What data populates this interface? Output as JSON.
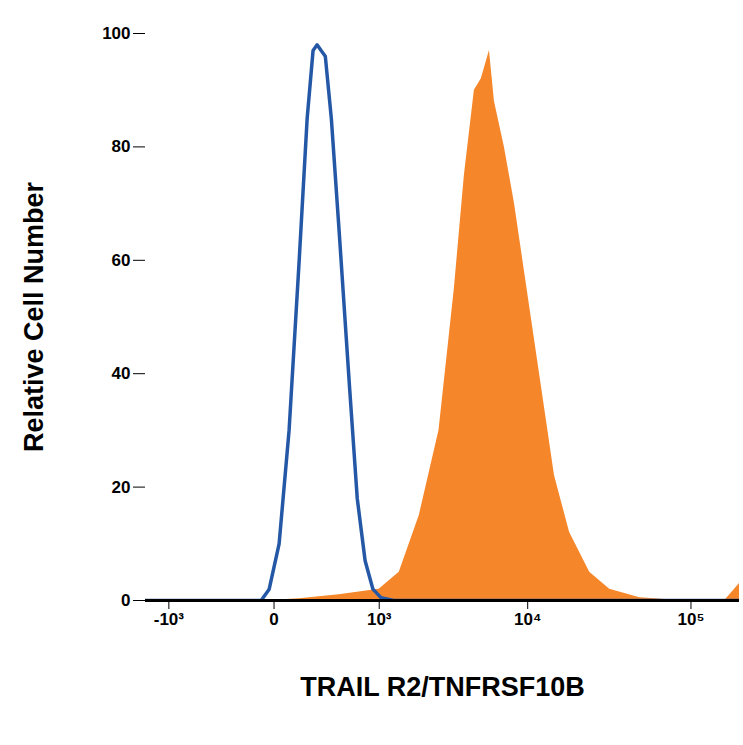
{
  "chart_data": {
    "type": "line",
    "xlabel": "TRAIL R2/TNFRSF10B",
    "ylabel": "Relative Cell Number",
    "log": "x",
    "xlim": [
      -1500,
      197000
    ],
    "xticks": [
      {
        "value": -1000,
        "label": "-10³"
      },
      0,
      {
        "value": 1000,
        "label": "10³"
      },
      {
        "value": 10000,
        "label": "10⁴"
      },
      {
        "value": 100000,
        "label": "10⁵"
      }
    ],
    "ylim": [
      0,
      100
    ],
    "yticks": [
      0,
      20,
      40,
      60,
      80,
      100
    ],
    "grid": false,
    "series": [
      {
        "type": "area",
        "color": "#f5862a",
        "x": [
          -1500,
          -21,
          126,
          444,
          683,
          999,
          1419,
          1973,
          2691,
          3406,
          3963,
          4600,
          5100,
          5744,
          6180,
          7140,
          8268,
          9554,
          11850,
          14670,
          18180,
          24150,
          32010,
          48900,
          85800,
          160500,
          184000,
          197000
        ],
        "values": [
          0,
          0,
          0.3,
          1,
          1.5,
          2,
          5,
          15,
          30,
          55,
          75,
          90,
          92,
          97,
          88,
          80,
          70,
          58,
          40,
          22,
          12,
          5,
          2,
          0.5,
          0,
          0,
          2,
          3
        ]
      },
      {
        "type": "line",
        "color": "#2458a6",
        "x": [
          -1500,
          -59,
          -21,
          22,
          70,
          126,
          176,
          217,
          247,
          278,
          313,
          367,
          444,
          558,
          657,
          768,
          891,
          1032,
          1295,
          197000
        ],
        "values": [
          0,
          0,
          2,
          10,
          30,
          60,
          85,
          97,
          98,
          97,
          96,
          85,
          65,
          38,
          18,
          7,
          2,
          0.5,
          0,
          0
        ]
      }
    ]
  }
}
